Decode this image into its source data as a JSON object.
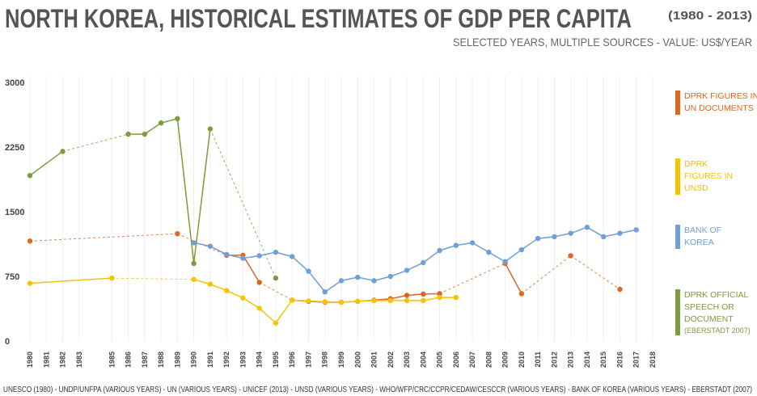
{
  "chart_data": {
    "type": "line",
    "title": "NORTH KOREA, HISTORICAL ESTIMATES OF GDP PER CAPITA",
    "title_note": "(1980 - 2013)",
    "subtitle": "SELECTED YEARS, MULTIPLE SOURCES  -  VALUE: US$/YEAR",
    "sources": "UNESCO (1980) - UNDP/UNFPA (VARIOUS YEARS) - UN (VARIOUS YEARS) - UNICEF (2013) - UNSD (VARIOUS YEARS) - WHO/WFP/CRC/CCPR/CEDAW/CESCCR (VARIOUS YEARS) - BANK OF KOREA (VARIOUS YEARS) - EBERSTADT (2007)",
    "xlim": [
      1980,
      2018
    ],
    "xticks": [
      1980,
      1981,
      1982,
      1983,
      1985,
      1986,
      1987,
      1988,
      1989,
      1990,
      1991,
      1992,
      1993,
      1994,
      1995,
      1996,
      1997,
      1998,
      1999,
      2000,
      2001,
      2002,
      2003,
      2004,
      2005,
      2006,
      2007,
      2008,
      2009,
      2010,
      2011,
      2012,
      2013,
      2014,
      2015,
      2016,
      2017,
      2018
    ],
    "ylim": [
      0,
      3000
    ],
    "yticks": [
      0,
      750,
      1500,
      2250,
      3000
    ],
    "grid": true,
    "series": [
      {
        "name": "DPRK FIGURES IN UN DOCUMENTS",
        "color": "#e0661b",
        "x": [
          1980,
          1985,
          1989,
          1990,
          1992,
          1993,
          1994,
          1995,
          1996,
          1997,
          1998,
          1999,
          2000,
          2001,
          2002,
          2003,
          2004,
          2005,
          2007,
          2009,
          2010,
          2011,
          2013,
          2014,
          2016
        ],
        "values": [
          1160,
          null,
          1245,
          null,
          995,
          995,
          680,
          null,
          475,
          460,
          450,
          450,
          460,
          475,
          490,
          530,
          545,
          550,
          null,
          900,
          550,
          null,
          990,
          null,
          600
        ]
      },
      {
        "name": "DPRK FIGURES IN UNSD",
        "color": "#f7c200",
        "x": [
          1980,
          1985,
          1987,
          1990,
          1991,
          1992,
          1993,
          1994,
          1995,
          1996,
          1997,
          1998,
          1999,
          2000,
          2001,
          2002,
          2003,
          2004,
          2005,
          2006
        ],
        "values": [
          670,
          730,
          null,
          715,
          660,
          585,
          500,
          380,
          210,
          475,
          465,
          455,
          450,
          460,
          470,
          470,
          470,
          470,
          505,
          505
        ]
      },
      {
        "name": "BANK OF KOREA",
        "color": "#6f9fd8",
        "x": [
          1990,
          1991,
          1992,
          1993,
          1994,
          1995,
          1996,
          1997,
          1998,
          1999,
          2000,
          2001,
          2002,
          2003,
          2004,
          2005,
          2006,
          2007,
          2008,
          2009,
          2010,
          2011,
          2012,
          2013,
          2014,
          2015,
          2016,
          2017
        ],
        "values": [
          1140,
          1100,
          1005,
          960,
          990,
          1030,
          980,
          810,
          570,
          700,
          740,
          700,
          750,
          820,
          910,
          1050,
          1110,
          1140,
          1030,
          920,
          1060,
          1190,
          1210,
          1250,
          1320,
          1210,
          1250,
          1290
        ]
      },
      {
        "name": "DPRK OFFICIAL SPEECH OR DOCUMENT",
        "source": "(EBERSTADT 2007)",
        "color": "#7d9c3d",
        "x": [
          1980,
          1982,
          1984,
          1986,
          1987,
          1988,
          1989,
          1990,
          1991,
          1993,
          1995
        ],
        "values": [
          1920,
          2200,
          null,
          2400,
          2400,
          2530,
          2580,
          900,
          2460,
          null,
          730
        ]
      }
    ]
  }
}
